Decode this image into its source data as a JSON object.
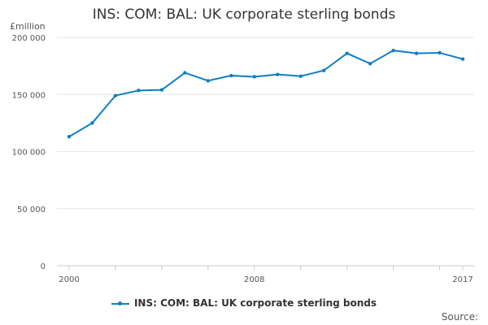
{
  "chart_data": {
    "type": "line",
    "title": "INS: COM: BAL: UK corporate sterling bonds",
    "ylabel": "£million",
    "x": [
      2000,
      2001,
      2002,
      2003,
      2004,
      2005,
      2006,
      2007,
      2008,
      2009,
      2010,
      2011,
      2012,
      2013,
      2014,
      2015,
      2016,
      2017
    ],
    "x_tick_labels": [
      "2000",
      "2008",
      "2017"
    ],
    "y_tick_labels": [
      "0",
      "50 000",
      "100 000",
      "150 000",
      "200 000"
    ],
    "ylim": [
      0,
      200000
    ],
    "grid": "horizontal",
    "legend_placement": "bottom",
    "series": [
      {
        "name": "INS: COM: BAL: UK corporate sterling bonds",
        "color": "#0c7fc4",
        "values": [
          113000,
          125000,
          149000,
          153500,
          154000,
          169000,
          162000,
          166500,
          165500,
          167500,
          166000,
          171000,
          186000,
          177000,
          188500,
          186000,
          186500,
          181000
        ]
      }
    ],
    "source_label": "Source:"
  }
}
